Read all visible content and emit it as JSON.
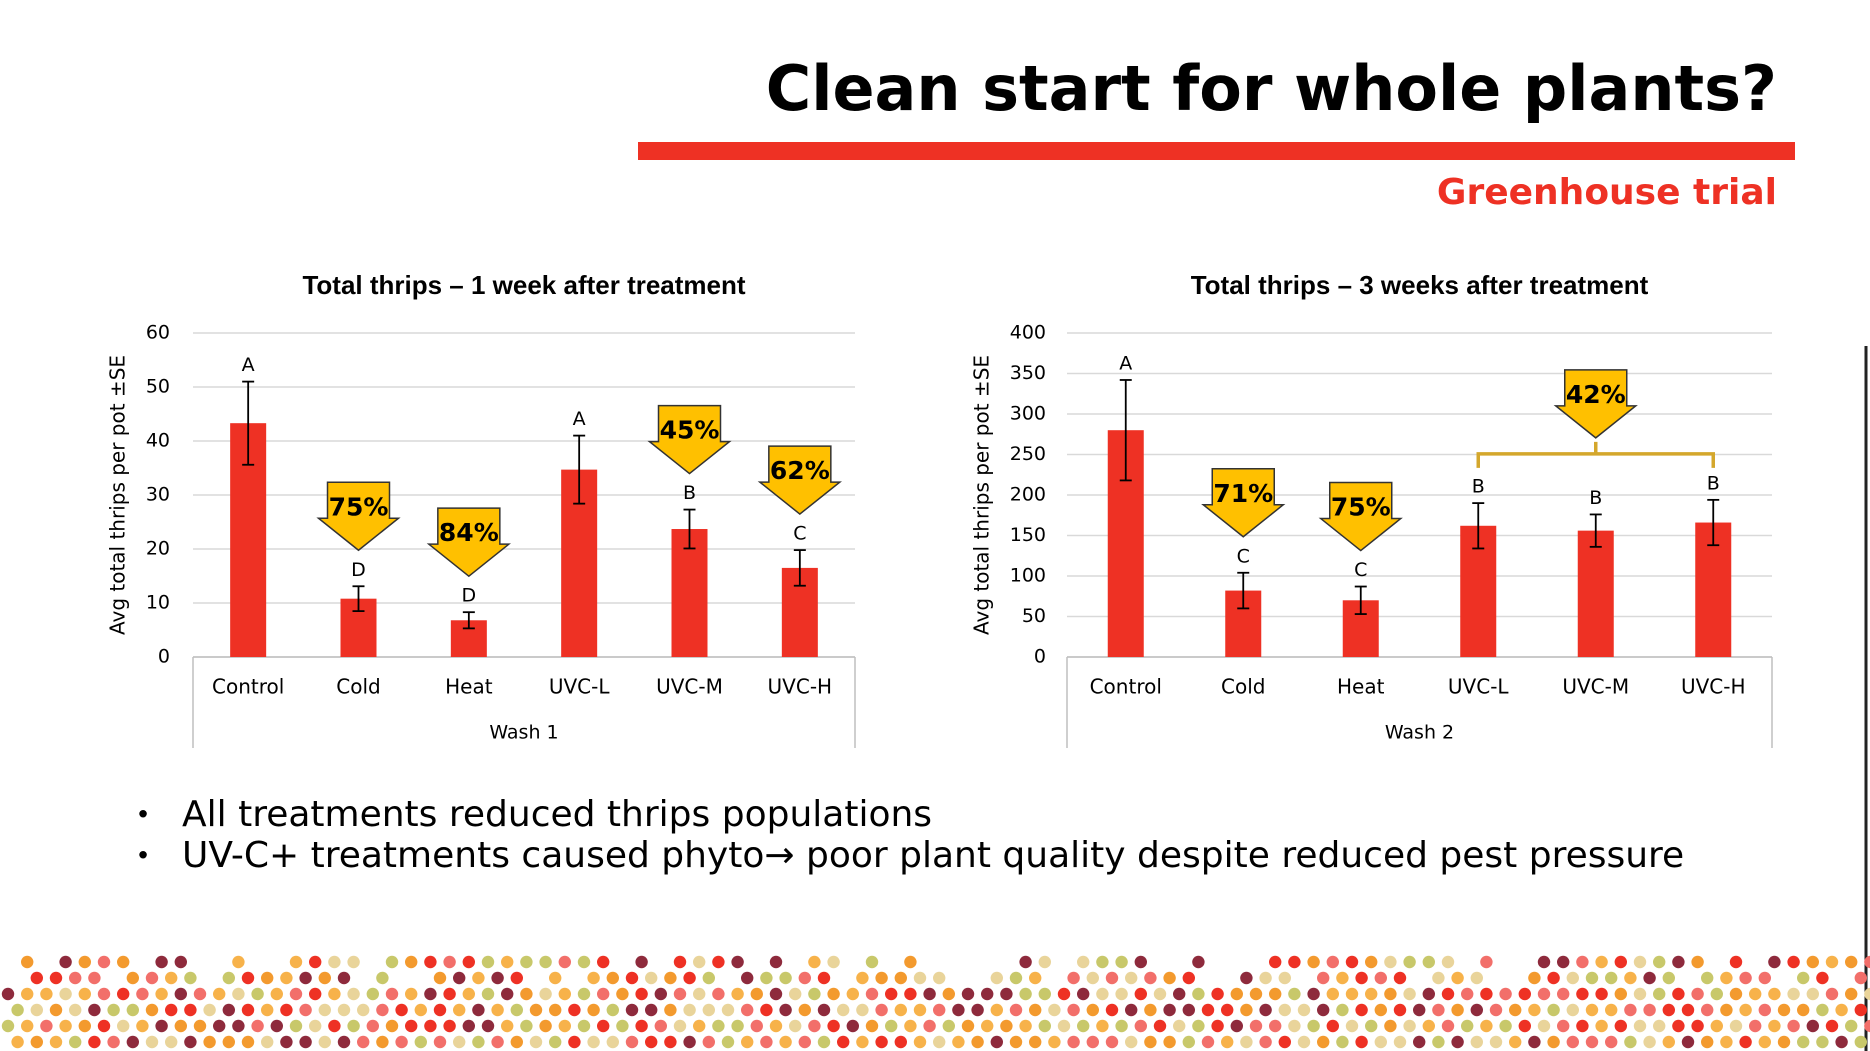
{
  "slide": {
    "title": "Clean start for whole plants?",
    "subtitle": "Greenhouse trial",
    "bullets": [
      "All treatments reduced thrips populations",
      "UV-C+ treatments caused phyto→ poor plant quality despite reduced pest pressure"
    ]
  },
  "chart_data": [
    {
      "type": "bar",
      "title": "Total thrips – 1 week after treatment",
      "y_label": "Avg total thrips per pot ±SE",
      "x_group_label": "Wash 1",
      "categories": [
        "Control",
        "Cold",
        "Heat",
        "UVC-L",
        "UVC-M",
        "UVC-H"
      ],
      "values": [
        43.3,
        10.8,
        6.8,
        34.7,
        23.7,
        16.5
      ],
      "errors": [
        7.7,
        2.3,
        1.5,
        6.3,
        3.6,
        3.3
      ],
      "significance_letters": [
        "A",
        "D",
        "D",
        "A",
        "B",
        "C"
      ],
      "callouts": [
        {
          "text": "75%",
          "categories": [
            "Cold"
          ]
        },
        {
          "text": "84%",
          "categories": [
            "Heat"
          ]
        },
        {
          "text": "45%",
          "categories": [
            "UVC-M"
          ]
        },
        {
          "text": "62%",
          "categories": [
            "UVC-H"
          ]
        }
      ],
      "color": "#ee3124",
      "ylim": [
        0,
        60
      ],
      "yticks": [
        0,
        10,
        20,
        30,
        40,
        50,
        60
      ],
      "grid": true
    },
    {
      "type": "bar",
      "title": "Total thrips – 3 weeks after treatment",
      "y_label": "Avg total thrips per pot ±SE",
      "x_group_label": "Wash 2",
      "categories": [
        "Control",
        "Cold",
        "Heat",
        "UVC-L",
        "UVC-M",
        "UVC-H"
      ],
      "values": [
        280,
        82,
        70,
        162,
        156,
        166
      ],
      "errors": [
        62,
        22,
        17,
        28,
        20,
        28
      ],
      "significance_letters": [
        "A",
        "C",
        "C",
        "B",
        "B",
        "B"
      ],
      "callouts": [
        {
          "text": "71%",
          "categories": [
            "Cold"
          ]
        },
        {
          "text": "75%",
          "categories": [
            "Heat"
          ]
        },
        {
          "text": "42%",
          "categories": [
            "UVC-L",
            "UVC-M",
            "UVC-H"
          ]
        }
      ],
      "color": "#ee3124",
      "ylim": [
        0,
        400
      ],
      "yticks": [
        0,
        50,
        100,
        150,
        200,
        250,
        300,
        350,
        400
      ],
      "grid": true
    }
  ]
}
